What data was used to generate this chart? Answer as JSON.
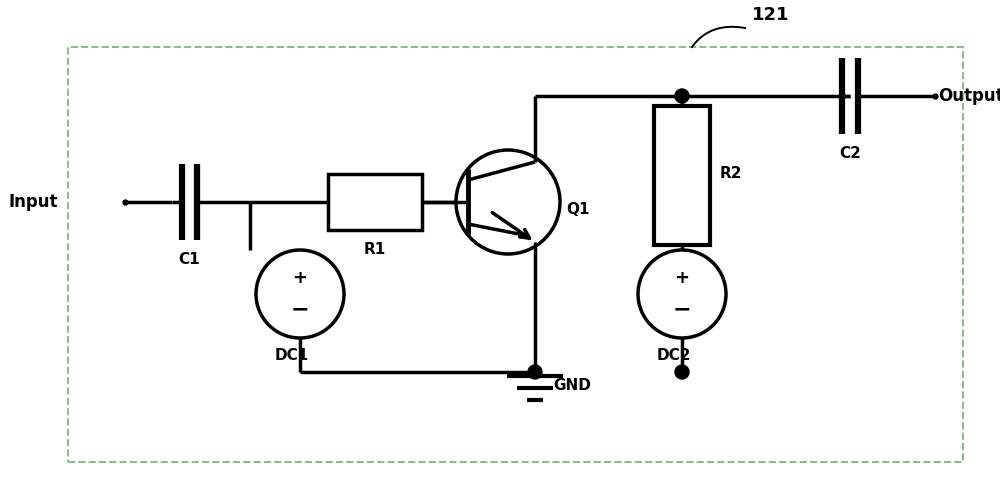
{
  "bg_color": "#ffffff",
  "border_color": "#88bb88",
  "line_color": "#000000",
  "label_121": "121",
  "label_input": "Input",
  "label_output": "Output",
  "label_c1": "C1",
  "label_c2": "C2",
  "label_r1": "R1",
  "label_r2": "R2",
  "label_q1": "Q1",
  "label_dc1": "DC1",
  "label_dc2": "DC2",
  "label_gnd": "GND",
  "figsize": [
    10.0,
    4.84
  ],
  "dpi": 100
}
